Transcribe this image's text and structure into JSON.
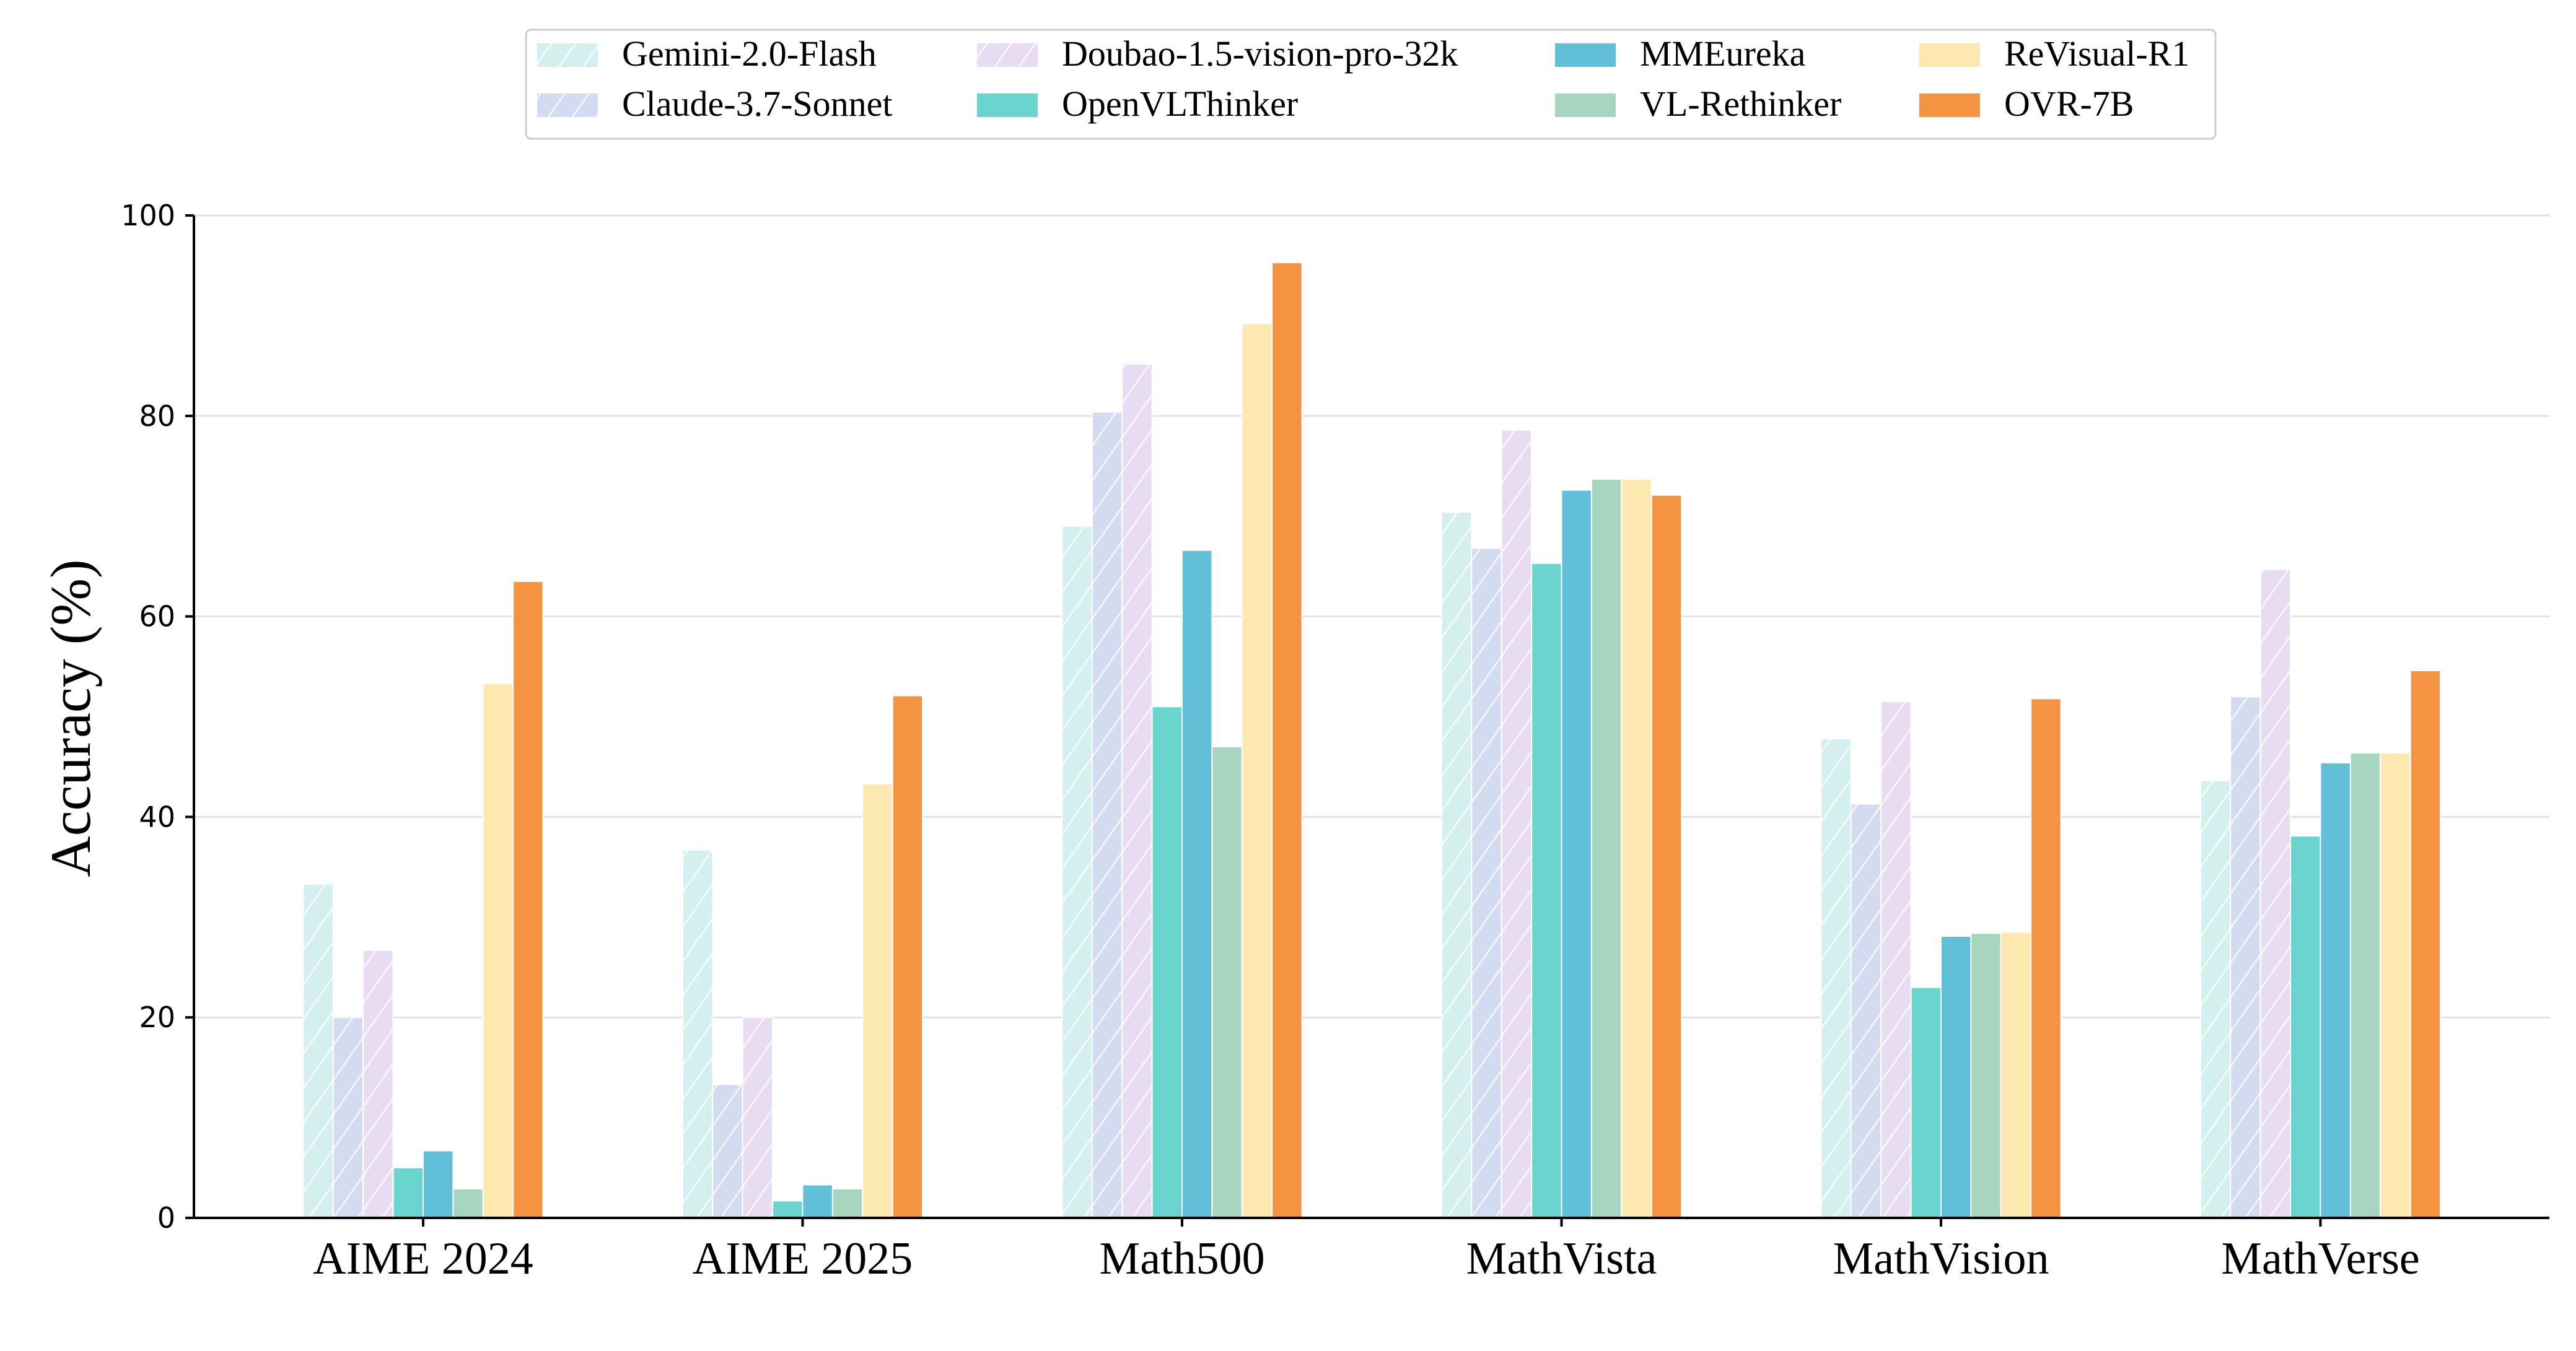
{
  "chart_data": {
    "type": "bar",
    "title": "",
    "xlabel": "",
    "ylabel": "Accuracy (%)",
    "ylim": [
      0,
      100
    ],
    "yticks": [
      0,
      20,
      40,
      60,
      80,
      100
    ],
    "grid": "horizontal",
    "legend_position": "top-center",
    "categories": [
      "AIME 2024",
      "AIME 2025",
      "Math500",
      "MathVista",
      "MathVision",
      "MathVerse"
    ],
    "series": [
      {
        "name": "Gemini-2.0-Flash",
        "color": "#d3f0ef",
        "hatch": true,
        "values": [
          33.3,
          36.7,
          69.0,
          70.4,
          47.8,
          43.6
        ]
      },
      {
        "name": "Claude-3.7-Sonnet",
        "color": "#d3dbf0",
        "hatch": true,
        "values": [
          20.0,
          13.3,
          80.4,
          66.8,
          41.3,
          52.0
        ]
      },
      {
        "name": "Doubao-1.5-vision-pro-32k",
        "color": "#e8dcf2",
        "hatch": true,
        "values": [
          26.7,
          20.0,
          85.2,
          78.6,
          51.5,
          64.7
        ]
      },
      {
        "name": "OpenVLThinker",
        "color": "#6ad4cf",
        "hatch": false,
        "values": [
          5.0,
          1.7,
          51.0,
          65.3,
          23.0,
          38.1
        ]
      },
      {
        "name": "MMEureka",
        "color": "#62bfd8",
        "hatch": false,
        "values": [
          6.7,
          3.3,
          66.6,
          72.6,
          28.1,
          45.4
        ]
      },
      {
        "name": "VL-Rethinker",
        "color": "#a8d5bf",
        "hatch": false,
        "values": [
          2.9,
          2.9,
          47.0,
          73.7,
          28.4,
          46.4
        ]
      },
      {
        "name": "ReVisual-R1",
        "color": "#fde9b0",
        "hatch": false,
        "values": [
          53.3,
          43.3,
          89.2,
          73.7,
          28.5,
          46.4
        ]
      },
      {
        "name": "OVR-7B",
        "color": "#f49443",
        "hatch": false,
        "values": [
          63.5,
          52.1,
          95.3,
          72.1,
          51.8,
          54.6
        ]
      }
    ]
  }
}
